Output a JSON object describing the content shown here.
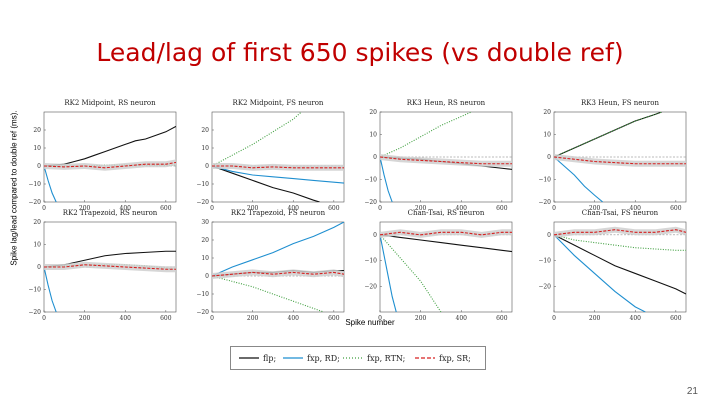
{
  "slide": {
    "title": "Lead/lag of first 650 spikes (vs double ref)",
    "y_label": "Spike lag/lead compared to double ref (ms).",
    "x_label": "Spike number",
    "page_number": "21"
  },
  "colors": {
    "title": "#c00000",
    "flp": "#111111",
    "fxp_rd": "#1f8fd0",
    "fxp_rtn": "#3f9f3f",
    "fxp_sr": "#d62020",
    "band": "#cfcfcf"
  },
  "chart_data": [
    {
      "type": "line",
      "title": "RK2 Midpoint, RS neuron",
      "x_ticks": [
        "0",
        "200",
        "400",
        "600"
      ],
      "y_ticks": [
        "20",
        "10",
        "0",
        "−10",
        "−20"
      ],
      "xlim": [
        0,
        650
      ],
      "ylim": [
        -20,
        30
      ],
      "series": [
        {
          "name": "flp",
          "x": [
            0,
            50,
            100,
            150,
            200,
            250,
            300,
            350,
            400,
            450,
            500,
            550,
            600,
            650
          ],
          "y": [
            0,
            0.5,
            1,
            2.5,
            4,
            6,
            8,
            10,
            12,
            14,
            15,
            17,
            19,
            22
          ]
        },
        {
          "name": "fxp, RD",
          "x": [
            0,
            20,
            40,
            60
          ],
          "y": [
            0,
            -8,
            -15,
            -20
          ]
        },
        {
          "name": "fxp, RTN",
          "x": [
            0,
            100,
            200,
            300,
            400,
            500,
            600,
            650
          ],
          "y": [
            0,
            0,
            0,
            0.5,
            0.5,
            0.5,
            0.5,
            0.5
          ]
        },
        {
          "name": "fxp, SR",
          "x": [
            0,
            100,
            200,
            300,
            400,
            500,
            600,
            650
          ],
          "y": [
            0,
            -0.5,
            0,
            -1,
            0,
            1,
            1,
            2
          ]
        }
      ]
    },
    {
      "type": "line",
      "title": "RK2 Midpoint, FS neuron",
      "x_ticks": [
        "0",
        "200",
        "400",
        "600"
      ],
      "y_ticks": [
        "20",
        "10",
        "0",
        "−10",
        "−20"
      ],
      "xlim": [
        0,
        650
      ],
      "ylim": [
        -20,
        30
      ],
      "series": [
        {
          "name": "flp",
          "x": [
            0,
            100,
            200,
            300,
            400,
            500,
            530
          ],
          "y": [
            0,
            -4,
            -8,
            -12,
            -15,
            -19,
            -20
          ]
        },
        {
          "name": "fxp, RD",
          "x": [
            0,
            100,
            200,
            300,
            400,
            500,
            600,
            650
          ],
          "y": [
            0,
            -3,
            -5,
            -6,
            -7,
            -8,
            -9,
            -9.5
          ]
        },
        {
          "name": "fxp, RTN",
          "x": [
            0,
            100,
            200,
            300,
            400,
            440
          ],
          "y": [
            0,
            6,
            12,
            19,
            26,
            30
          ]
        },
        {
          "name": "fxp, SR",
          "x": [
            0,
            100,
            200,
            300,
            400,
            500,
            600,
            650
          ],
          "y": [
            0,
            0,
            -1,
            -0.5,
            -1,
            -1,
            -1,
            -1
          ]
        }
      ]
    },
    {
      "type": "line",
      "title": "RK3 Heun, RS neuron",
      "x_ticks": [
        "0",
        "200",
        "400",
        "600"
      ],
      "y_ticks": [
        "20",
        "10",
        "0",
        "−10",
        "−20"
      ],
      "xlim": [
        0,
        650
      ],
      "ylim": [
        -20,
        20
      ],
      "series": [
        {
          "name": "flp",
          "x": [
            0,
            100,
            200,
            300,
            400,
            500,
            600,
            650
          ],
          "y": [
            0,
            -0.5,
            -1,
            -2,
            -3,
            -4,
            -5,
            -5.5
          ]
        },
        {
          "name": "fxp, RD",
          "x": [
            0,
            20,
            40,
            60
          ],
          "y": [
            0,
            -8,
            -15,
            -20
          ]
        },
        {
          "name": "fxp, RTN",
          "x": [
            0,
            100,
            200,
            300,
            400,
            450
          ],
          "y": [
            0,
            4,
            9,
            14,
            18,
            20
          ]
        },
        {
          "name": "fxp, SR",
          "x": [
            0,
            100,
            200,
            300,
            400,
            500,
            600,
            650
          ],
          "y": [
            0,
            -1,
            -1.5,
            -2,
            -2.5,
            -3,
            -3,
            -3
          ]
        }
      ]
    },
    {
      "type": "line",
      "title": "RK3 Heun, FS neuron",
      "x_ticks": [
        "0",
        "200",
        "400",
        "600"
      ],
      "y_ticks": [
        "20",
        "10",
        "0",
        "−10",
        "−20"
      ],
      "xlim": [
        0,
        650
      ],
      "ylim": [
        -20,
        20
      ],
      "series": [
        {
          "name": "flp",
          "x": [
            0,
            100,
            200,
            300,
            400,
            500,
            530
          ],
          "y": [
            0,
            4,
            8,
            12,
            16,
            19,
            20
          ]
        },
        {
          "name": "fxp, RD",
          "x": [
            0,
            50,
            100,
            150,
            200,
            240
          ],
          "y": [
            0,
            -4,
            -8,
            -13,
            -17,
            -20
          ]
        },
        {
          "name": "fxp, RTN",
          "x": [
            0,
            100,
            200,
            300,
            400,
            500,
            530
          ],
          "y": [
            0,
            4,
            8,
            12,
            16,
            19,
            20
          ]
        },
        {
          "name": "fxp, SR",
          "x": [
            0,
            100,
            200,
            300,
            400,
            500,
            600,
            650
          ],
          "y": [
            0,
            -1,
            -2,
            -2.5,
            -3,
            -3,
            -3,
            -3
          ]
        }
      ]
    },
    {
      "type": "line",
      "title": "RK2 Trapezoid, RS neuron",
      "x_ticks": [
        "0",
        "200",
        "400",
        "600"
      ],
      "y_ticks": [
        "20",
        "10",
        "0",
        "−10",
        "−20"
      ],
      "xlim": [
        0,
        650
      ],
      "ylim": [
        -20,
        20
      ],
      "series": [
        {
          "name": "flp",
          "x": [
            0,
            100,
            200,
            300,
            400,
            500,
            600,
            650
          ],
          "y": [
            0,
            1,
            3,
            5,
            6,
            6.5,
            7,
            7
          ]
        },
        {
          "name": "fxp, RD",
          "x": [
            0,
            20,
            40,
            60
          ],
          "y": [
            0,
            -8,
            -15,
            -20
          ]
        },
        {
          "name": "fxp, RTN",
          "x": [
            0,
            100,
            200,
            300,
            400,
            500,
            600,
            650
          ],
          "y": [
            0,
            0.5,
            1,
            1,
            1,
            0.5,
            -0.5,
            -1
          ]
        },
        {
          "name": "fxp, SR",
          "x": [
            0,
            100,
            200,
            300,
            400,
            500,
            600,
            650
          ],
          "y": [
            0,
            0,
            1,
            0.5,
            0,
            -0.5,
            -1,
            -1
          ]
        }
      ]
    },
    {
      "type": "line",
      "title": "RK2 Trapezoid, FS neuron",
      "x_ticks": [
        "0",
        "200",
        "400",
        "600"
      ],
      "y_ticks": [
        "30",
        "20",
        "10",
        "0",
        "−10",
        "−20"
      ],
      "xlim": [
        0,
        650
      ],
      "ylim": [
        -20,
        30
      ],
      "series": [
        {
          "name": "flp",
          "x": [
            0,
            100,
            200,
            300,
            400,
            500,
            600,
            650
          ],
          "y": [
            0,
            1,
            2,
            2,
            3,
            2,
            3,
            3
          ]
        },
        {
          "name": "fxp, RD",
          "x": [
            0,
            100,
            200,
            300,
            400,
            500,
            600,
            650
          ],
          "y": [
            0,
            5,
            9,
            13,
            18,
            22,
            27,
            30
          ]
        },
        {
          "name": "fxp, RTN",
          "x": [
            0,
            100,
            200,
            300,
            400,
            500,
            550
          ],
          "y": [
            0,
            -3,
            -6,
            -10,
            -14,
            -18,
            -20
          ]
        },
        {
          "name": "fxp, SR",
          "x": [
            0,
            100,
            200,
            300,
            400,
            500,
            600,
            650
          ],
          "y": [
            0,
            1,
            2,
            1,
            2,
            1,
            2,
            1
          ]
        }
      ]
    },
    {
      "type": "line",
      "title": "Chan-Tsai, RS neuron",
      "x_ticks": [
        "0",
        "200",
        "400",
        "600"
      ],
      "y_ticks": [
        "0",
        "−10",
        "−20"
      ],
      "xlim": [
        0,
        650
      ],
      "ylim": [
        -30,
        5
      ],
      "series": [
        {
          "name": "flp",
          "x": [
            0,
            100,
            200,
            300,
            400,
            500,
            600,
            650
          ],
          "y": [
            0,
            -1,
            -2,
            -3,
            -4,
            -5,
            -6,
            -6.5
          ]
        },
        {
          "name": "fxp, RD",
          "x": [
            0,
            20,
            40,
            60,
            80
          ],
          "y": [
            0,
            -8,
            -16,
            -24,
            -30
          ]
        },
        {
          "name": "fxp, RTN",
          "x": [
            0,
            100,
            200,
            300
          ],
          "y": [
            0,
            -9,
            -18,
            -30
          ]
        },
        {
          "name": "fxp, SR",
          "x": [
            0,
            100,
            200,
            300,
            400,
            500,
            600,
            650
          ],
          "y": [
            0,
            1,
            0,
            1,
            1,
            0,
            1,
            1
          ]
        }
      ]
    },
    {
      "type": "line",
      "title": "Chan-Tsai, FS neuron",
      "x_ticks": [
        "0",
        "200",
        "400",
        "600"
      ],
      "y_ticks": [
        "0",
        "−10",
        "−20"
      ],
      "xlim": [
        0,
        650
      ],
      "ylim": [
        -30,
        5
      ],
      "series": [
        {
          "name": "flp",
          "x": [
            0,
            100,
            200,
            300,
            400,
            500,
            600,
            650
          ],
          "y": [
            0,
            -4,
            -8,
            -12,
            -15,
            -18,
            -21,
            -23
          ]
        },
        {
          "name": "fxp, RD",
          "x": [
            0,
            100,
            200,
            300,
            400,
            450
          ],
          "y": [
            0,
            -8,
            -15,
            -22,
            -28,
            -30
          ]
        },
        {
          "name": "fxp, RTN",
          "x": [
            0,
            100,
            200,
            300,
            400,
            500,
            600,
            650
          ],
          "y": [
            0,
            -2,
            -3,
            -4,
            -5,
            -5.5,
            -6,
            -6
          ]
        },
        {
          "name": "fxp, SR",
          "x": [
            0,
            100,
            200,
            300,
            400,
            500,
            600,
            650
          ],
          "y": [
            0,
            1,
            1,
            2,
            1,
            1,
            2,
            1
          ]
        }
      ]
    }
  ],
  "legend": [
    {
      "label": "flp;",
      "color": "#111111",
      "dash": "none"
    },
    {
      "label": "fxp, RD;",
      "color": "#1f8fd0",
      "dash": "none"
    },
    {
      "label": "fxp, RTN;",
      "color": "#3f9f3f",
      "dash": "1,2"
    },
    {
      "label": "fxp, SR;",
      "color": "#d62020",
      "dash": "4,2"
    }
  ]
}
